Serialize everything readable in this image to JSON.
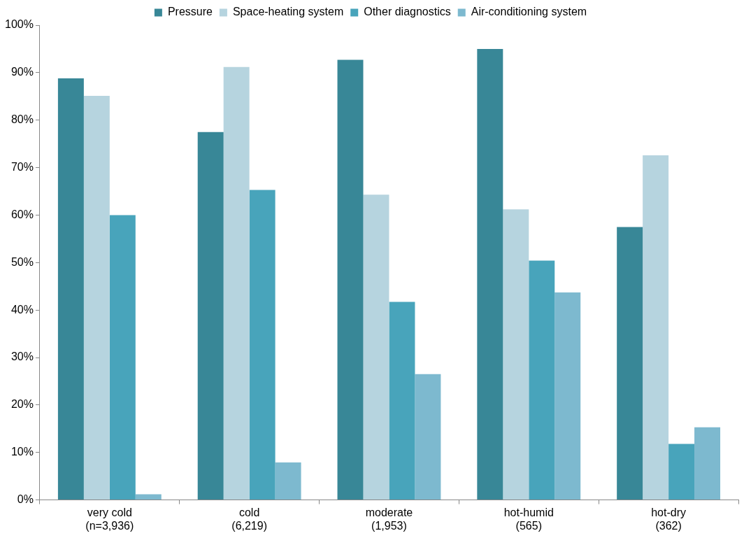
{
  "chart_data": {
    "type": "bar",
    "categories": [
      "very cold\n(n=3,936)",
      "cold\n(6,219)",
      "moderate\n(1,953)",
      "hot-humid\n(565)",
      "hot-dry\n(362)"
    ],
    "series": [
      {
        "name": "Pressure",
        "color": "#388797",
        "values": [
          88.8,
          77.5,
          92.7,
          95.0,
          57.5
        ]
      },
      {
        "name": "Space-heating system",
        "color": "#b6d4df",
        "values": [
          85.1,
          91.2,
          64.3,
          61.2,
          72.6
        ]
      },
      {
        "name": "Other diagnostics",
        "color": "#48a4bb",
        "values": [
          60.0,
          65.3,
          41.7,
          50.4,
          11.8
        ]
      },
      {
        "name": "Air-conditioning system",
        "color": "#7db9cf",
        "values": [
          1.2,
          7.9,
          26.5,
          43.7,
          15.3
        ]
      }
    ],
    "ylim": [
      0,
      100
    ],
    "yticks": [
      {
        "value": 0,
        "label": "0%"
      },
      {
        "value": 10,
        "label": "10%"
      },
      {
        "value": 20,
        "label": "20%"
      },
      {
        "value": 30,
        "label": "30%"
      },
      {
        "value": 40,
        "label": "40%"
      },
      {
        "value": 50,
        "label": "50%"
      },
      {
        "value": 60,
        "label": "60%"
      },
      {
        "value": 70,
        "label": "70%"
      },
      {
        "value": 80,
        "label": "80%"
      },
      {
        "value": 90,
        "label": "90%"
      },
      {
        "value": 100,
        "label": "100%"
      }
    ],
    "legend": "top"
  }
}
